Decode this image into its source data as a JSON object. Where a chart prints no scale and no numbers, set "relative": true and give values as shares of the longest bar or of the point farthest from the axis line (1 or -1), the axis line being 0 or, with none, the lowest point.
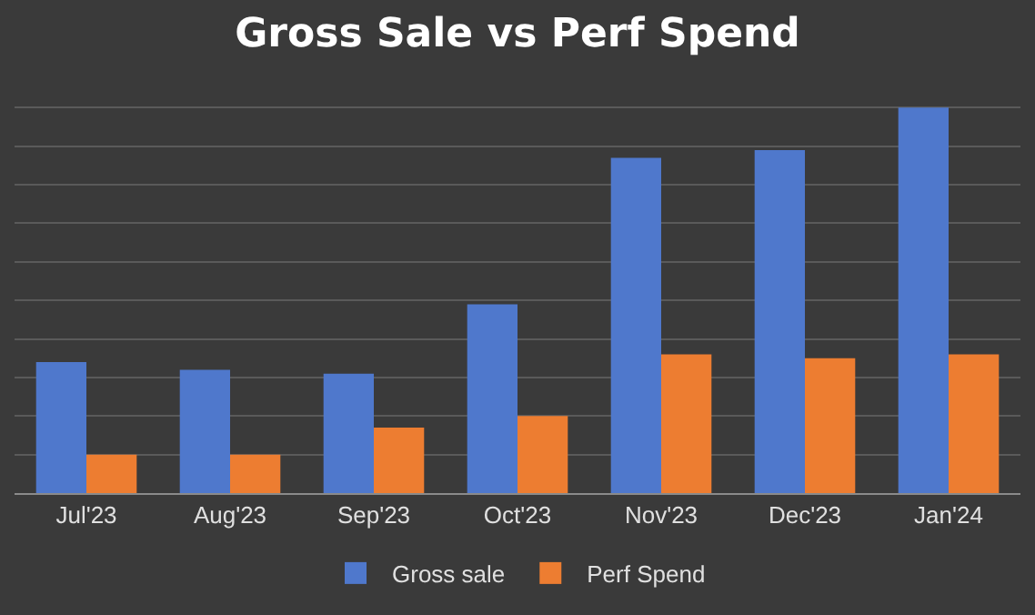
{
  "chart_data": {
    "type": "bar",
    "title": "Gross Sale vs Perf Spend",
    "relative": true,
    "grid": "y",
    "legend": "bottom",
    "categories": [
      "Jul'23",
      "Aug'23",
      "Sep'23",
      "Oct'23",
      "Nov'23",
      "Dec'23",
      "Jan'24"
    ],
    "series": [
      {
        "name": "Gross sale",
        "color": "#4f78cc",
        "values": [
          0.34,
          0.32,
          0.31,
          0.49,
          0.87,
          0.89,
          1
        ]
      },
      {
        "name": "Perf Spend",
        "color": "#ed7d31",
        "values": [
          0.1,
          0.1,
          0.17,
          0.2,
          0.36,
          0.35,
          0.36
        ]
      }
    ]
  }
}
